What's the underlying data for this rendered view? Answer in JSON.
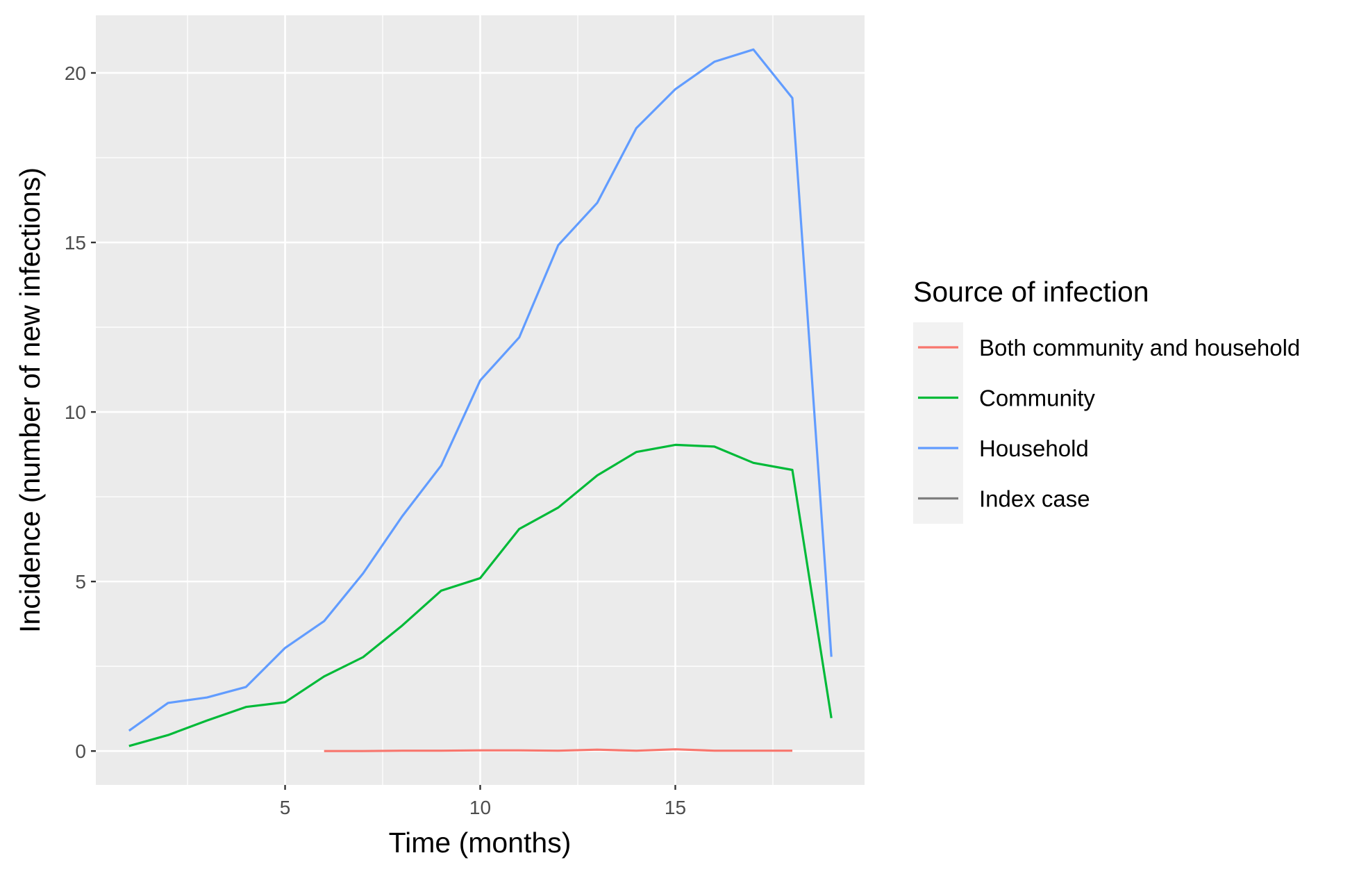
{
  "chart_data": {
    "type": "line",
    "title": "",
    "xlabel": "Time (months)",
    "ylabel": "Incidence (number of new infections)",
    "xlim": [
      0.15,
      19.85
    ],
    "ylim": [
      -1.0,
      21.7
    ],
    "x_ticks": [
      5,
      10,
      15
    ],
    "x_minor_ticks": [
      2.5,
      7.5,
      12.5,
      17.5
    ],
    "y_ticks": [
      0,
      5,
      10,
      15,
      20
    ],
    "y_minor_ticks": [
      2.5,
      7.5,
      12.5,
      17.5
    ],
    "grid": true,
    "legend": {
      "title": "Source of infection",
      "position": "right"
    },
    "series": [
      {
        "name": "Both community and household",
        "color": "#F8766D",
        "x": [
          6,
          7,
          8,
          9,
          10,
          11,
          12,
          13,
          14,
          15,
          16,
          17,
          18
        ],
        "y": [
          0.0,
          0.0,
          0.01,
          0.01,
          0.02,
          0.02,
          0.01,
          0.04,
          0.01,
          0.05,
          0.01,
          0.01,
          0.01
        ]
      },
      {
        "name": "Community",
        "color": "#00BA38",
        "x": [
          1,
          2,
          3,
          4,
          5,
          6,
          7,
          8,
          9,
          10,
          11,
          12,
          13,
          14,
          15,
          16,
          17,
          18,
          19
        ],
        "y": [
          0.15,
          0.47,
          0.9,
          1.3,
          1.44,
          2.2,
          2.77,
          3.7,
          4.73,
          5.1,
          6.55,
          7.18,
          8.13,
          8.82,
          9.03,
          8.98,
          8.5,
          8.29,
          0.97
        ]
      },
      {
        "name": "Household",
        "color": "#619CFF",
        "x": [
          1,
          2,
          3,
          4,
          5,
          6,
          7,
          8,
          9,
          10,
          11,
          12,
          13,
          14,
          15,
          16,
          17,
          18,
          19
        ],
        "y": [
          0.6,
          1.42,
          1.58,
          1.89,
          3.04,
          3.83,
          5.24,
          6.92,
          8.42,
          10.93,
          12.2,
          14.92,
          16.17,
          18.37,
          19.52,
          20.33,
          20.69,
          19.26,
          2.78
        ]
      },
      {
        "name": "Index case",
        "color": "#7F7F7F",
        "x": [],
        "y": []
      }
    ]
  }
}
